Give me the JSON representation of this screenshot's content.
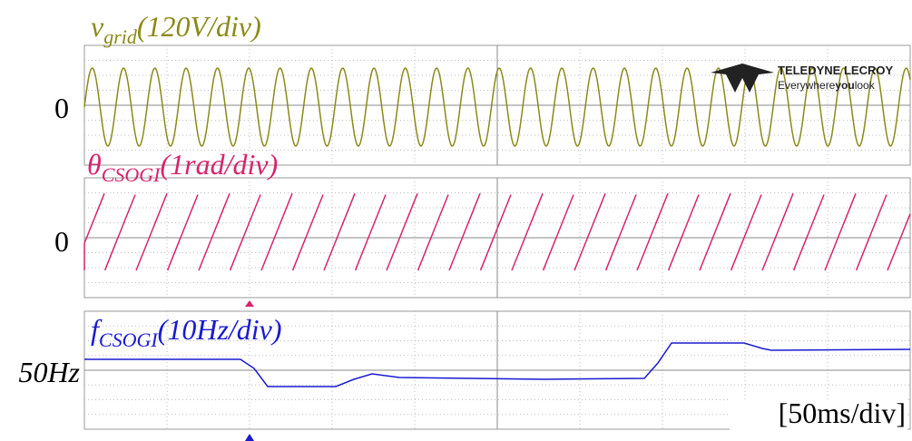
{
  "traces": [
    {
      "symbol": "v",
      "subscript": "grid",
      "scale": "(120V/div)",
      "reference": "0"
    },
    {
      "symbol": "θ",
      "subscript": "CSOGI",
      "scale": "(1rad/div)",
      "reference": "0"
    },
    {
      "symbol": "f",
      "subscript": "CSOGI",
      "scale": "(10Hz/div)",
      "reference": "50Hz"
    }
  ],
  "timebase": "[50ms/div]",
  "logo": {
    "brand": "TELEDYNE LECROY",
    "tagline_start": "Everywhere",
    "tagline_bold": "you",
    "tagline_end": "look"
  }
}
